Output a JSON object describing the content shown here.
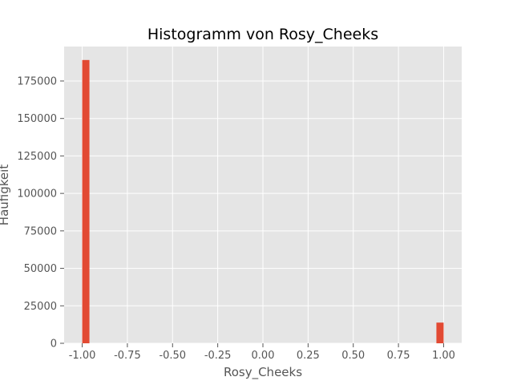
{
  "chart_data": {
    "type": "bar",
    "title": "Histogramm von Rosy_Cheeks",
    "xlabel": "Rosy_Cheeks",
    "ylabel": "Häufigkeit",
    "xlim": [
      -1.1,
      1.1
    ],
    "ylim": [
      0,
      198000
    ],
    "xticks": [
      "-1.00",
      "-0.75",
      "-0.50",
      "-0.25",
      "0.00",
      "0.25",
      "0.50",
      "0.75",
      "1.00"
    ],
    "xtick_values": [
      -1.0,
      -0.75,
      -0.5,
      -0.25,
      0.0,
      0.25,
      0.5,
      0.75,
      1.0
    ],
    "yticks": [
      "0",
      "25000",
      "50000",
      "75000",
      "100000",
      "125000",
      "150000",
      "175000"
    ],
    "ytick_values": [
      0,
      25000,
      50000,
      75000,
      100000,
      125000,
      150000,
      175000
    ],
    "bins": [
      {
        "x0": -1.0,
        "x1": -0.96,
        "value": 189000
      },
      {
        "x0": 0.96,
        "x1": 1.0,
        "value": 13800
      }
    ],
    "grid": true,
    "colors": {
      "bar": "#E24A33",
      "plot_bg": "#E5E5E5",
      "grid": "#FFFFFF"
    }
  }
}
